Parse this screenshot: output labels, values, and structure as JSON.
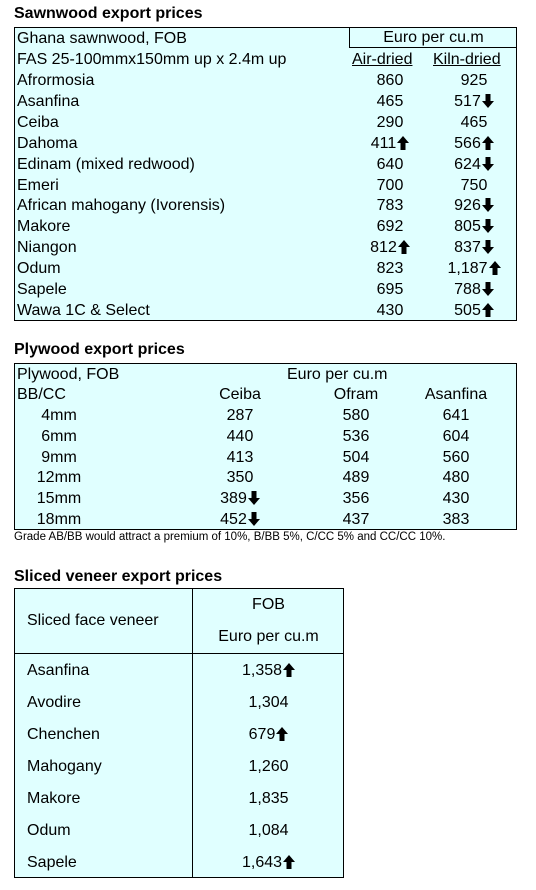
{
  "sawnwood": {
    "title": "Sawnwood export prices",
    "header_label": "Ghana sawnwood, FOB",
    "unit": "Euro per cu.m",
    "spec": "FAS 25-100mmx150mm up x 2.4m up",
    "col_air": "Air-dried",
    "col_kiln": "Kiln-dried",
    "rows": [
      {
        "name": "Afrormosia",
        "air": "860",
        "air_trend": "",
        "kiln": "925",
        "kiln_trend": ""
      },
      {
        "name": "Asanfina",
        "air": "465",
        "air_trend": "",
        "kiln": "517",
        "kiln_trend": "down"
      },
      {
        "name": "Ceiba",
        "air": "290",
        "air_trend": "",
        "kiln": "465",
        "kiln_trend": ""
      },
      {
        "name": "Dahoma",
        "air": "411",
        "air_trend": "up",
        "kiln": "566",
        "kiln_trend": "up"
      },
      {
        "name": "Edinam (mixed redwood)",
        "air": "640",
        "air_trend": "",
        "kiln": "624",
        "kiln_trend": "down"
      },
      {
        "name": "Emeri",
        "air": "700",
        "air_trend": "",
        "kiln": "750",
        "kiln_trend": ""
      },
      {
        "name": "African mahogany (Ivorensis)",
        "air": "783",
        "air_trend": "",
        "kiln": "926",
        "kiln_trend": "down"
      },
      {
        "name": "Makore",
        "air": "692",
        "air_trend": "",
        "kiln": "805",
        "kiln_trend": "down"
      },
      {
        "name": "Niangon",
        "air": "812",
        "air_trend": "up",
        "kiln": "837",
        "kiln_trend": "down"
      },
      {
        "name": "Odum",
        "air": "823",
        "air_trend": "",
        "kiln": "1,187",
        "kiln_trend": "up"
      },
      {
        "name": "Sapele",
        "air": "695",
        "air_trend": "",
        "kiln": "788",
        "kiln_trend": "down"
      },
      {
        "name": "Wawa 1C & Select",
        "air": "430",
        "air_trend": "",
        "kiln": "505",
        "kiln_trend": "up"
      }
    ]
  },
  "plywood": {
    "title": "Plywood export prices",
    "header_label": "Plywood, FOB",
    "unit": "Euro per cu.m",
    "grade_label": "BB/CC",
    "columns": [
      "Ceiba",
      "Ofram",
      "Asanfina"
    ],
    "rows": [
      {
        "size": "4mm",
        "ceiba": "287",
        "ceiba_trend": "",
        "ofram": "580",
        "asanfina": "641"
      },
      {
        "size": "6mm",
        "ceiba": "440",
        "ceiba_trend": "",
        "ofram": "536",
        "asanfina": "604"
      },
      {
        "size": "9mm",
        "ceiba": "413",
        "ceiba_trend": "",
        "ofram": "504",
        "asanfina": "560"
      },
      {
        "size": "12mm",
        "ceiba": "350",
        "ceiba_trend": "",
        "ofram": "489",
        "asanfina": "480"
      },
      {
        "size": "15mm",
        "ceiba": "389",
        "ceiba_trend": "down",
        "ofram": "356",
        "asanfina": "430"
      },
      {
        "size": "18mm",
        "ceiba": "452",
        "ceiba_trend": "down",
        "ofram": "437",
        "asanfina": "383"
      }
    ],
    "note": "Grade AB/BB would attract a premium of 10%, B/BB 5%, C/CC 5% and CC/CC 10%."
  },
  "veneer": {
    "title": "Sliced veneer export prices",
    "header_label": "Sliced face veneer",
    "col_line1": "FOB",
    "col_line2": "Euro per cu.m",
    "rows": [
      {
        "name": "Asanfina",
        "value": "1,358",
        "trend": "up"
      },
      {
        "name": "Avodire",
        "value": "1,304",
        "trend": ""
      },
      {
        "name": "Chenchen",
        "value": "679",
        "trend": "up"
      },
      {
        "name": "Mahogany",
        "value": "1,260",
        "trend": ""
      },
      {
        "name": "Makore",
        "value": "1,835",
        "trend": ""
      },
      {
        "name": "Odum",
        "value": "1,084",
        "trend": ""
      },
      {
        "name": "Sapele",
        "value": "1,643",
        "trend": "up"
      }
    ]
  }
}
